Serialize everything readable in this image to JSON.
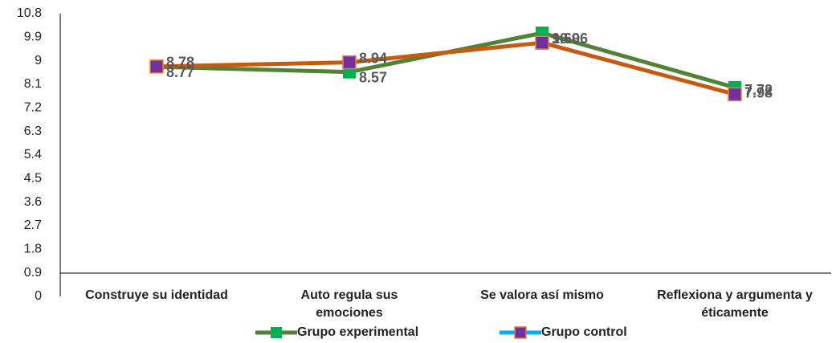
{
  "chart_data": {
    "type": "line",
    "categories": [
      "Construye su identidad",
      "Auto regula sus emociones",
      "Se valora así mismo",
      "Reflexiona y argumenta y éticamente"
    ],
    "series": [
      {
        "name": "Grupo experimental",
        "color": "#548235",
        "marker_color": "#00b050",
        "legend_color": "#548235",
        "values": [
          8.77,
          8.57,
          10.06,
          7.98
        ]
      },
      {
        "name": "Grupo control",
        "color": "#c55a11",
        "marker_color": "#7030a0",
        "legend_color": "#00b0f0",
        "values": [
          8.78,
          8.94,
          9.69,
          7.72
        ]
      }
    ],
    "ylim": [
      0,
      10.8
    ],
    "yticks": [
      0,
      0.9,
      1.8,
      2.7,
      3.6,
      4.5,
      5.4,
      6.3,
      7.2,
      8.1,
      9,
      9.9,
      10.8
    ],
    "grid": false,
    "legend": "bottom"
  }
}
